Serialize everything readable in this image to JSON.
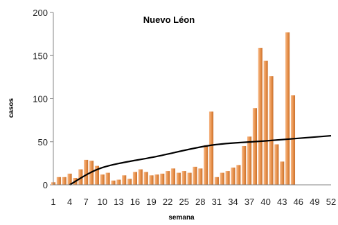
{
  "chart_data": {
    "type": "bar",
    "title": "Nuevo Léon",
    "xlabel": "semana",
    "ylabel": "casos",
    "ylim": [
      0,
      200
    ],
    "y_ticks": [
      0,
      50,
      100,
      150,
      200
    ],
    "x_ticks": [
      1,
      4,
      7,
      10,
      13,
      16,
      19,
      22,
      25,
      28,
      31,
      34,
      37,
      40,
      43,
      46,
      49,
      52
    ],
    "x_range": [
      1,
      52
    ],
    "grid": false,
    "bar_color": "#E8914A",
    "trend_color": "#000000",
    "series": [
      {
        "x": [
          1,
          2,
          3,
          4,
          5,
          6,
          7,
          8,
          9,
          10,
          11,
          12,
          13,
          14,
          15,
          16,
          17,
          18,
          19,
          20,
          21,
          22,
          23,
          24,
          25,
          26,
          27,
          28,
          29,
          30,
          31,
          32,
          33,
          34,
          35,
          36,
          37,
          38,
          39,
          40,
          41,
          42,
          43,
          44,
          45,
          46
        ],
        "values": [
          3,
          9,
          9,
          13,
          8,
          18,
          29,
          28,
          22,
          12,
          14,
          5,
          6,
          11,
          7,
          15,
          18,
          15,
          11,
          12,
          13,
          16,
          19,
          14,
          16,
          14,
          21,
          19,
          46,
          85,
          9,
          14,
          16,
          20,
          23,
          45,
          56,
          89,
          159,
          144,
          126,
          47,
          27,
          177,
          104,
          0
        ]
      }
    ],
    "trendline": {
      "type": "logarithmic",
      "points": [
        {
          "x": 4,
          "y": 0
        },
        {
          "x": 10,
          "y": 20
        },
        {
          "x": 20,
          "y": 33
        },
        {
          "x": 30,
          "y": 46
        },
        {
          "x": 40,
          "y": 51
        },
        {
          "x": 52,
          "y": 57
        }
      ]
    }
  }
}
